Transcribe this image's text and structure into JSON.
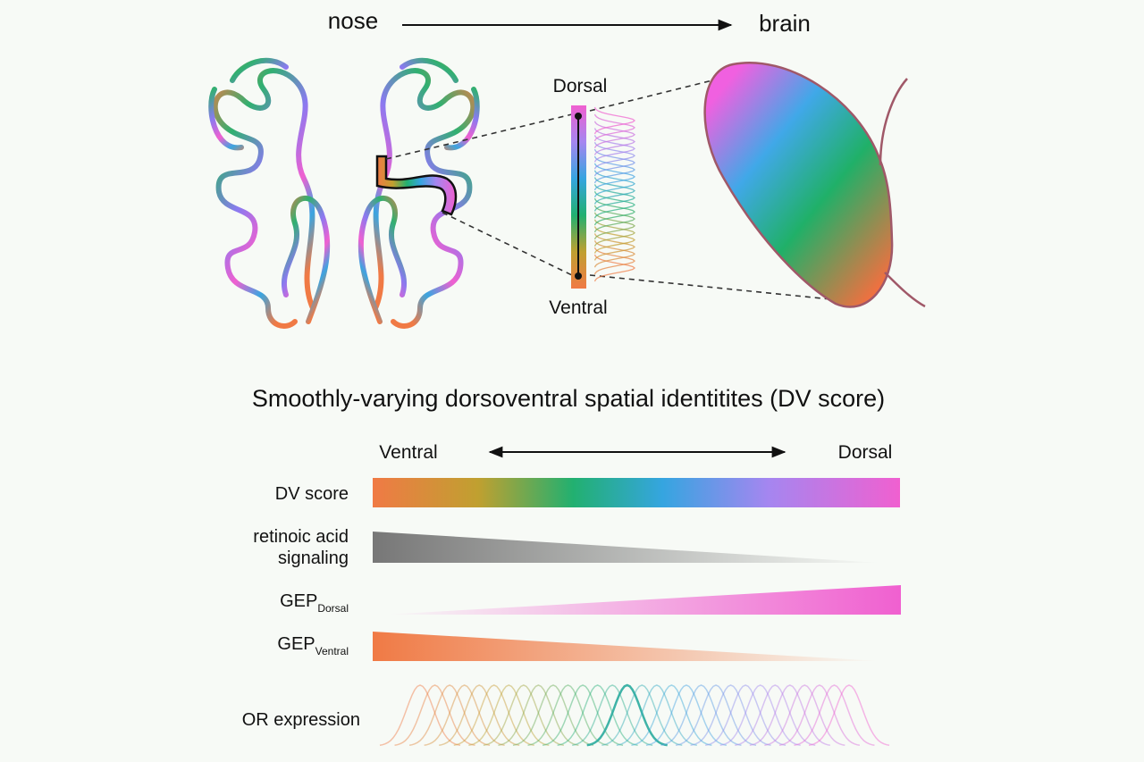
{
  "top": {
    "nose": "nose",
    "brain": "brain",
    "dorsal": "Dorsal",
    "ventral": "Ventral"
  },
  "title": "Smoothly-varying dorsoventral spatial identitites (DV score)",
  "axis": {
    "left": "Ventral",
    "right": "Dorsal"
  },
  "rows": [
    {
      "label": "DV score"
    },
    {
      "label_lines": [
        "retinoic acid",
        "signaling"
      ]
    },
    {
      "label": "GEP",
      "sub": "Dorsal"
    },
    {
      "label": "GEP",
      "sub": "Ventral"
    },
    {
      "label": "OR expression"
    }
  ]
}
